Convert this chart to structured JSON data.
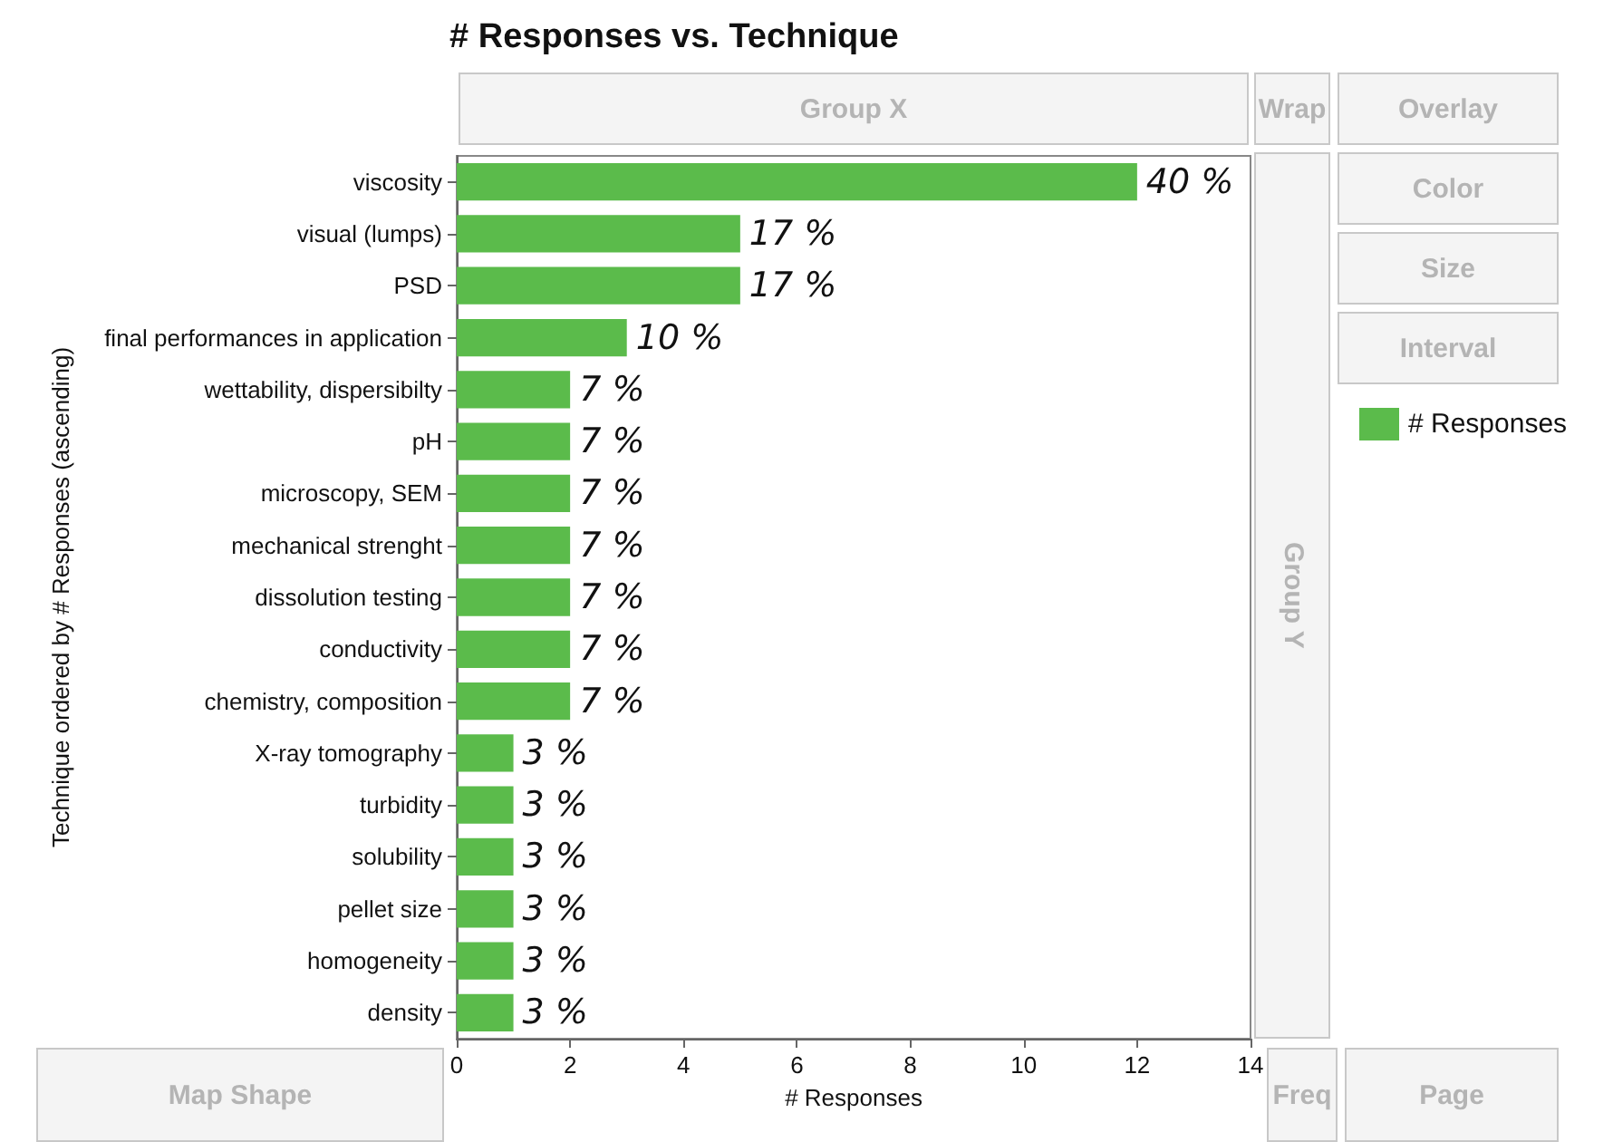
{
  "chart_data": {
    "type": "bar",
    "orientation": "horizontal",
    "title": "# Responses vs. Technique",
    "xlabel": "# Responses",
    "ylabel": "Technique ordered by # Responses (ascending)",
    "categories": [
      "viscosity",
      "visual (lumps)",
      "PSD",
      "final performances in application",
      "wettability, dispersibilty",
      "pH",
      "microscopy, SEM",
      "mechanical strenght",
      "dissolution testing",
      "conductivity",
      "chemistry, composition",
      "X-ray tomography",
      "turbidity",
      "solubility",
      "pellet size",
      "homogeneity",
      "density"
    ],
    "series": [
      {
        "name": "# Responses",
        "color": "#5bbb4b",
        "values": [
          12,
          5,
          5,
          3,
          2,
          2,
          2,
          2,
          2,
          2,
          2,
          1,
          1,
          1,
          1,
          1,
          1
        ]
      }
    ],
    "xlim": [
      0,
      14
    ],
    "xticks": [
      0,
      2,
      4,
      6,
      8,
      10,
      12,
      14
    ],
    "grid": false,
    "legend": "top right",
    "annotations": [
      "Group X",
      "Wrap",
      "Overlay",
      "Color",
      "Size",
      "Interval",
      "Group Y",
      "Map Shape",
      "Freq",
      "Page",
      {
        "text": "40 %",
        "x": 12,
        "y": "viscosity"
      },
      {
        "text": "17 %",
        "x": 5,
        "y": "visual (lumps)"
      },
      {
        "text": "17 %",
        "x": 5,
        "y": "PSD"
      },
      {
        "text": "10 %",
        "x": 3,
        "y": "final performances in application"
      },
      {
        "text": "7 %",
        "x": 2,
        "y": "wettability, dispersibilty"
      },
      {
        "text": "7 %",
        "x": 2,
        "y": "pH"
      },
      {
        "text": "7 %",
        "x": 2,
        "y": "microscopy, SEM"
      },
      {
        "text": "7 %",
        "x": 2,
        "y": "mechanical strenght"
      },
      {
        "text": "7 %",
        "x": 2,
        "y": "dissolution testing"
      },
      {
        "text": "7 %",
        "x": 2,
        "y": "conductivity"
      },
      {
        "text": "7 %",
        "x": 2,
        "y": "chemistry, composition"
      },
      {
        "text": "3 %",
        "x": 1,
        "y": "X-ray tomography"
      },
      {
        "text": "3 %",
        "x": 1,
        "y": "turbidity"
      },
      {
        "text": "3 %",
        "x": 1,
        "y": "solubility"
      },
      {
        "text": "3 %",
        "x": 1,
        "y": "pellet size"
      },
      {
        "text": "3 %",
        "x": 1,
        "y": "homogeneity"
      },
      {
        "text": "3 %",
        "x": 1,
        "y": "density"
      }
    ]
  }
}
